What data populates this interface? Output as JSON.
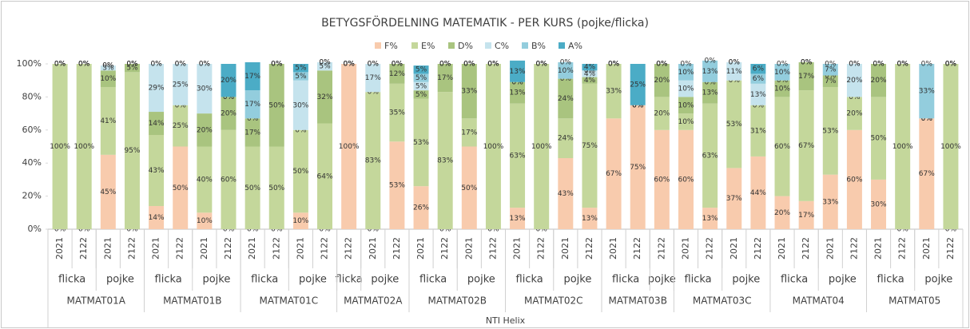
{
  "chart_data": {
    "type": "stacked_bar",
    "title": "BETYGSFÖRDELNING MATEMATIK - PER KURS (pojke/flicka)",
    "outer_label": "NTI Helix",
    "courses": [
      {
        "name": "MATMAT01A",
        "groups": [
          {
            "name": "flicka",
            "years": [
              "2021",
              "2122"
            ]
          },
          {
            "name": "pojke",
            "years": [
              "2021",
              "2122"
            ]
          }
        ]
      },
      {
        "name": "MATMAT01B",
        "groups": [
          {
            "name": "flicka",
            "years": [
              "2021",
              "2122"
            ]
          },
          {
            "name": "pojke",
            "years": [
              "2021",
              "2122"
            ]
          }
        ]
      },
      {
        "name": "MATMAT01C",
        "groups": [
          {
            "name": "flicka",
            "years": [
              "2021",
              "2122"
            ]
          },
          {
            "name": "pojke",
            "years": [
              "2021",
              "2122"
            ]
          }
        ]
      },
      {
        "name": "MATMAT02A",
        "groups": [
          {
            "name": "flicka",
            "years": [
              "2122"
            ]
          },
          {
            "name": "pojke",
            "years": [
              "2021",
              "2122"
            ]
          }
        ]
      },
      {
        "name": "MATMAT02B",
        "groups": [
          {
            "name": "flicka",
            "years": [
              "2021",
              "2122"
            ]
          },
          {
            "name": "pojke",
            "years": [
              "2021",
              "2122"
            ]
          }
        ]
      },
      {
        "name": "MATMAT02C",
        "groups": [
          {
            "name": "flicka",
            "years": [
              "2021",
              "2122"
            ]
          },
          {
            "name": "pojke",
            "years": [
              "2021",
              "2122"
            ]
          }
        ]
      },
      {
        "name": "MATMAT03B",
        "groups": [
          {
            "name": "flicka",
            "years": [
              "2021",
              "2122"
            ]
          },
          {
            "name": "pojke",
            "years": [
              "2122"
            ]
          }
        ]
      },
      {
        "name": "MATMAT03C",
        "groups": [
          {
            "name": "flicka",
            "years": [
              "2021",
              "2122"
            ]
          },
          {
            "name": "pojke",
            "years": [
              "2021",
              "2122"
            ]
          }
        ]
      },
      {
        "name": "MATMAT04",
        "groups": [
          {
            "name": "flicka",
            "years": [
              "2021",
              "2122"
            ]
          },
          {
            "name": "pojke",
            "years": [
              "2021",
              "2122"
            ]
          }
        ]
      },
      {
        "name": "MATMAT05",
        "groups": [
          {
            "name": "flicka",
            "years": [
              "2021",
              "2122"
            ]
          },
          {
            "name": "pojke",
            "years": [
              "2021",
              "2122"
            ]
          }
        ]
      }
    ],
    "series": [
      {
        "name": "F%",
        "color": "#f8cbad",
        "values": [
          0,
          0,
          45,
          0,
          14,
          50,
          10,
          0,
          0,
          0,
          10,
          0,
          100,
          0,
          53,
          26,
          0,
          50,
          0,
          13,
          0,
          43,
          13,
          67,
          75,
          60,
          60,
          13,
          37,
          44,
          20,
          17,
          33,
          60,
          30,
          0,
          67,
          0
        ],
        "value_labels": [
          "0%",
          "0%",
          "45%",
          "0%",
          "14%",
          "50%",
          "10%",
          "0%",
          "0%",
          "0%",
          "10%",
          "0%",
          "100%",
          "0%",
          "53%",
          "26%",
          "0%",
          "50%",
          "0%",
          "13%",
          "0%",
          "43%",
          "13%",
          "67%",
          "75%",
          "60%",
          "60%",
          "13%",
          "37%",
          "44%",
          "20%",
          "17%",
          "33%",
          "60%",
          "30%",
          "0%",
          "67%",
          "0%"
        ]
      },
      {
        "name": "E%",
        "color": "#c4d79b",
        "values": [
          100,
          100,
          41,
          95,
          43,
          25,
          40,
          60,
          50,
          50,
          50,
          64,
          0,
          83,
          35,
          53,
          83,
          17,
          100,
          63,
          100,
          24,
          75,
          33,
          0,
          20,
          10,
          63,
          53,
          31,
          60,
          67,
          53,
          20,
          50,
          100,
          0,
          100
        ],
        "value_labels": [
          "100%",
          "100%",
          "41%",
          "95%",
          "43%",
          "25%",
          "40%",
          "60%",
          "50%",
          "50%",
          "50%",
          "64%",
          "0%",
          "83%",
          "35%",
          "53%",
          "83%",
          "17%",
          "100%",
          "63%",
          "100%",
          "24%",
          "75%",
          "33%",
          "0%",
          "20%",
          "10%",
          "63%",
          "53%",
          "31%",
          "60%",
          "67%",
          "53%",
          "20%",
          "50%",
          "100%",
          "0%",
          "100%"
        ]
      },
      {
        "name": "D%",
        "color": "#a9c47f",
        "values": [
          0,
          0,
          10,
          5,
          14,
          0,
          20,
          20,
          17,
          50,
          0,
          32,
          0,
          0,
          12,
          5,
          17,
          33,
          0,
          13,
          0,
          24,
          4,
          0,
          0,
          20,
          10,
          13,
          0,
          0,
          10,
          17,
          7,
          0,
          20,
          0,
          0,
          0
        ],
        "value_labels": [
          "0%",
          "0%",
          "10%",
          "5%",
          "14%",
          "0%",
          "20%",
          "20%",
          "17%",
          "50%",
          "0%",
          "32%",
          "0%",
          "0%",
          "12%",
          "5%",
          "17%",
          "33%",
          "0%",
          "13%",
          "0%",
          "24%",
          "4%",
          "0%",
          "0%",
          "20%",
          "10%",
          "13%",
          "0%",
          "0%",
          "10%",
          "17%",
          "7%",
          "0%",
          "20%",
          "0%",
          "0%",
          "0%"
        ]
      },
      {
        "name": "C%",
        "color": "#c5e3ed",
        "values": [
          0,
          0,
          3,
          0,
          29,
          25,
          30,
          0,
          0,
          0,
          30,
          5,
          0,
          17,
          0,
          5,
          0,
          0,
          0,
          0,
          0,
          0,
          4,
          0,
          0,
          0,
          10,
          0,
          11,
          13,
          0,
          0,
          0,
          20,
          0,
          0,
          0,
          0
        ],
        "value_labels": [
          "0%",
          "0%",
          "3%",
          "0%",
          "29%",
          "25%",
          "30%",
          "0%",
          "0%",
          "0%",
          "30%",
          "5%",
          "0%",
          "17%",
          "0%",
          "5%",
          "0%",
          "0%",
          "0%",
          "0%",
          "0%",
          "0%",
          "4%",
          "0%",
          "0%",
          "0%",
          "10%",
          "0%",
          "11%",
          "13%",
          "0%",
          "0%",
          "0%",
          "20%",
          "0%",
          "0%",
          "0%",
          "0%"
        ]
      },
      {
        "name": "B%",
        "color": "#93cddd",
        "values": [
          0,
          0,
          0,
          0,
          0,
          0,
          0,
          0,
          17,
          0,
          5,
          0,
          0,
          0,
          0,
          5,
          0,
          0,
          0,
          0,
          0,
          10,
          0,
          0,
          0,
          0,
          10,
          13,
          0,
          6,
          10,
          0,
          7,
          0,
          0,
          0,
          33,
          0
        ],
        "value_labels": [
          "0%",
          "0%",
          "0%",
          "0%",
          "0%",
          "0%",
          "0%",
          "0%",
          "17%",
          "0%",
          "5%",
          "0%",
          "0%",
          "0%",
          "0%",
          "5%",
          "0%",
          "0%",
          "0%",
          "0%",
          "0%",
          "10%",
          "0%",
          "0%",
          "0%",
          "0%",
          "10%",
          "13%",
          "0%",
          "6%",
          "10%",
          "0%",
          "7%",
          "0%",
          "0%",
          "0%",
          "33%",
          "0%"
        ]
      },
      {
        "name": "A%",
        "color": "#4bacc6",
        "values": [
          0,
          0,
          0,
          0,
          0,
          0,
          0,
          20,
          17,
          0,
          5,
          0,
          0,
          0,
          0,
          5,
          0,
          0,
          0,
          13,
          0,
          0,
          4,
          0,
          25,
          0,
          0,
          0,
          0,
          6,
          0,
          0,
          0,
          0,
          0,
          0,
          0,
          0
        ],
        "value_labels": [
          "0%",
          "0%",
          "0%",
          "0%",
          "0%",
          "0%",
          "0%",
          "20%",
          "17%",
          "0%",
          "5%",
          "0%",
          "0%",
          "0%",
          "0%",
          "5%",
          "0%",
          "0%",
          "0%",
          "13%",
          "0%",
          "0%",
          "4%",
          "0%",
          "25%",
          "0%",
          "0%",
          "0%",
          "0%",
          "6%",
          "0%",
          "0%",
          "0%",
          "0%",
          "0%",
          "0%",
          "0%",
          "0%"
        ]
      }
    ],
    "ylim": [
      0,
      100
    ],
    "yticks": [
      {
        "value": 0,
        "label": "0%"
      },
      {
        "value": 20,
        "label": "20%"
      },
      {
        "value": 40,
        "label": "40%"
      },
      {
        "value": 60,
        "label": "60%"
      },
      {
        "value": 80,
        "label": "80%"
      },
      {
        "value": 100,
        "label": "100%"
      }
    ],
    "grid": false
  }
}
